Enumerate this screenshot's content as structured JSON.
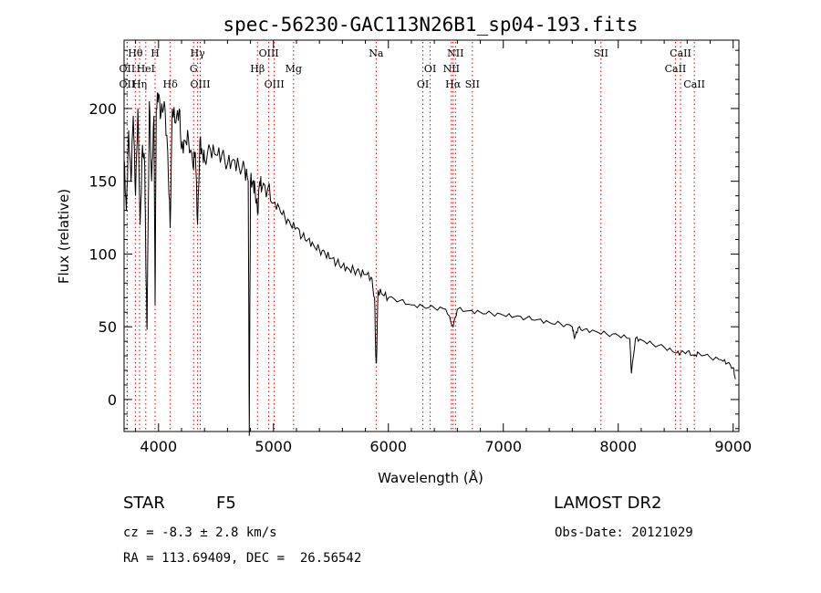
{
  "chart_data": {
    "type": "line",
    "title": "spec-56230-GAC113N26B1_sp04-193.fits",
    "xlabel": "Wavelength (Å)",
    "ylabel": "Flux (relative)",
    "xlim": [
      3700,
      9050
    ],
    "ylim": [
      -22,
      247
    ],
    "xticks": [
      4000,
      5000,
      6000,
      7000,
      8000,
      9000
    ],
    "yticks": [
      0,
      50,
      100,
      150,
      200
    ],
    "grid": false,
    "line_color": "#000000",
    "marker_color": "#cc0000",
    "series": [
      {
        "x": [
          3700,
          3720,
          3740,
          3760,
          3780,
          3800,
          3820,
          3840,
          3860,
          3880,
          3890,
          3900,
          3920,
          3940,
          3960,
          3970,
          3980,
          4000,
          4020,
          4050,
          4080,
          4101,
          4120,
          4150,
          4180,
          4200,
          4230,
          4260,
          4300,
          4320,
          4340,
          4360,
          4380,
          4400,
          4450,
          4500,
          4550,
          4600,
          4650,
          4700,
          4750,
          4780,
          4790,
          4800,
          4820,
          4840,
          4861,
          4880,
          4900,
          4950,
          5000,
          5050,
          5100,
          5150,
          5200,
          5250,
          5300,
          5350,
          5400,
          5450,
          5500,
          5550,
          5600,
          5650,
          5700,
          5750,
          5800,
          5850,
          5880,
          5890,
          5896,
          5910,
          5950,
          6000,
          6100,
          6200,
          6300,
          6400,
          6500,
          6563,
          6600,
          6700,
          6800,
          6900,
          7000,
          7100,
          7200,
          7300,
          7400,
          7500,
          7600,
          7620,
          7650,
          7700,
          7800,
          7900,
          8000,
          8100,
          8115,
          8150,
          8200,
          8300,
          8400,
          8498,
          8542,
          8600,
          8662,
          8700,
          8800,
          8900,
          8950,
          9000,
          9020
        ],
        "y": [
          165,
          130,
          185,
          150,
          195,
          140,
          200,
          120,
          175,
          160,
          90,
          48,
          205,
          150,
          195,
          65,
          200,
          210,
          195,
          205,
          170,
          118,
          200,
          190,
          200,
          172,
          178,
          180,
          160,
          170,
          120,
          178,
          170,
          165,
          172,
          168,
          168,
          162,
          165,
          160,
          158,
          150,
          -25,
          150,
          150,
          145,
          128,
          150,
          145,
          145,
          135,
          132,
          125,
          120,
          118,
          112,
          110,
          106,
          103,
          100,
          97,
          94,
          92,
          90,
          89,
          87,
          86,
          84,
          70,
          30,
          25,
          75,
          72,
          70,
          68,
          65,
          64,
          63,
          62,
          50,
          62,
          61,
          60,
          59,
          58,
          57,
          56,
          55,
          53,
          52,
          50,
          42,
          49,
          48,
          47,
          45,
          44,
          42,
          18,
          42,
          41,
          38,
          36,
          32,
          32,
          33,
          30,
          32,
          29,
          27,
          25,
          22,
          14
        ]
      }
    ],
    "line_markers": [
      {
        "name": "Hθ",
        "x": 3798,
        "row": 1
      },
      {
        "name": "H",
        "x": 3970,
        "row": 1
      },
      {
        "name": "OII",
        "x": 3727,
        "row": 2
      },
      {
        "name": "HeI",
        "x": 3889,
        "row": 2
      },
      {
        "name": "OII",
        "x": 3727,
        "row": 3
      },
      {
        "name": "Hη",
        "x": 3835,
        "row": 3
      },
      {
        "name": "Hδ",
        "x": 4102,
        "row": 3
      },
      {
        "name": "Hγ",
        "x": 4340,
        "row": 1
      },
      {
        "name": "G",
        "x": 4305,
        "row": 2
      },
      {
        "name": "OIII",
        "x": 4363,
        "row": 3
      },
      {
        "name": "OIII",
        "x": 4959,
        "row": 1
      },
      {
        "name": "Hβ",
        "x": 4861,
        "row": 2
      },
      {
        "name": "OIII",
        "x": 5007,
        "row": 3
      },
      {
        "name": "Mg",
        "x": 5175,
        "row": 2
      },
      {
        "name": "Na",
        "x": 5894,
        "row": 1
      },
      {
        "name": "OI",
        "x": 6364,
        "row": 2
      },
      {
        "name": "OI",
        "x": 6300,
        "row": 3
      },
      {
        "name": "NII",
        "x": 6584,
        "row": 1
      },
      {
        "name": "NII",
        "x": 6548,
        "row": 2
      },
      {
        "name": "Hα",
        "x": 6563,
        "row": 3
      },
      {
        "name": "SII",
        "x": 6731,
        "row": 3
      },
      {
        "name": "SII",
        "x": 7850,
        "row": 1
      },
      {
        "name": "CaII",
        "x": 8542,
        "row": 1
      },
      {
        "name": "CaII",
        "x": 8498,
        "row": 2
      },
      {
        "name": "CaII",
        "x": 8662,
        "row": 3
      }
    ]
  },
  "info": {
    "object_type": "STAR",
    "subclass": "F5",
    "survey": "LAMOST DR2",
    "cz": "cz = -8.3 ± 2.8 km/s",
    "obs_date": "Obs-Date: 20121029",
    "coords": "RA = 113.69409, DEC =  26.56542"
  }
}
